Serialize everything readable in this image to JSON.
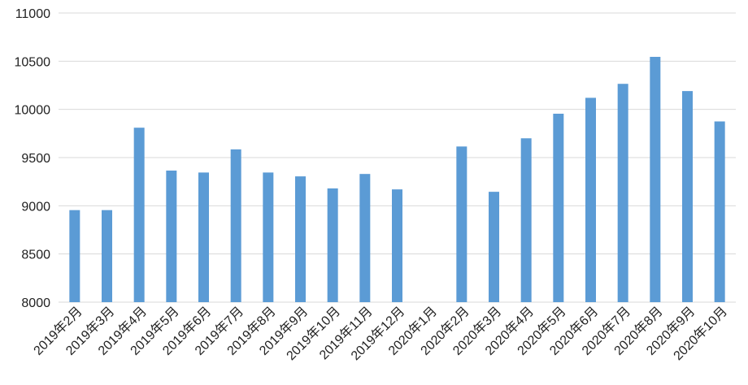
{
  "chart_data": {
    "type": "bar",
    "categories": [
      "2019年2月",
      "2019年3月",
      "2019年4月",
      "2019年5月",
      "2019年6月",
      "2019年7月",
      "2019年8月",
      "2019年9月",
      "2019年10月",
      "2019年11月",
      "2019年12月",
      "2020年1月",
      "2020年2月",
      "2020年3月",
      "2020年4月",
      "2020年5月",
      "2020年6月",
      "2020年7月",
      "2020年8月",
      "2020年9月",
      "2020年10月"
    ],
    "values": [
      8955,
      8955,
      9810,
      9365,
      9345,
      9585,
      9345,
      9305,
      9180,
      9330,
      9170,
      null,
      9615,
      9145,
      9700,
      9955,
      10120,
      10265,
      10545,
      10190,
      9875
    ],
    "color": "#5b9bd5",
    "ylim": [
      8000,
      11000
    ],
    "yticks": [
      8000,
      8500,
      9000,
      9500,
      10000,
      10500,
      11000
    ],
    "grid": true
  }
}
